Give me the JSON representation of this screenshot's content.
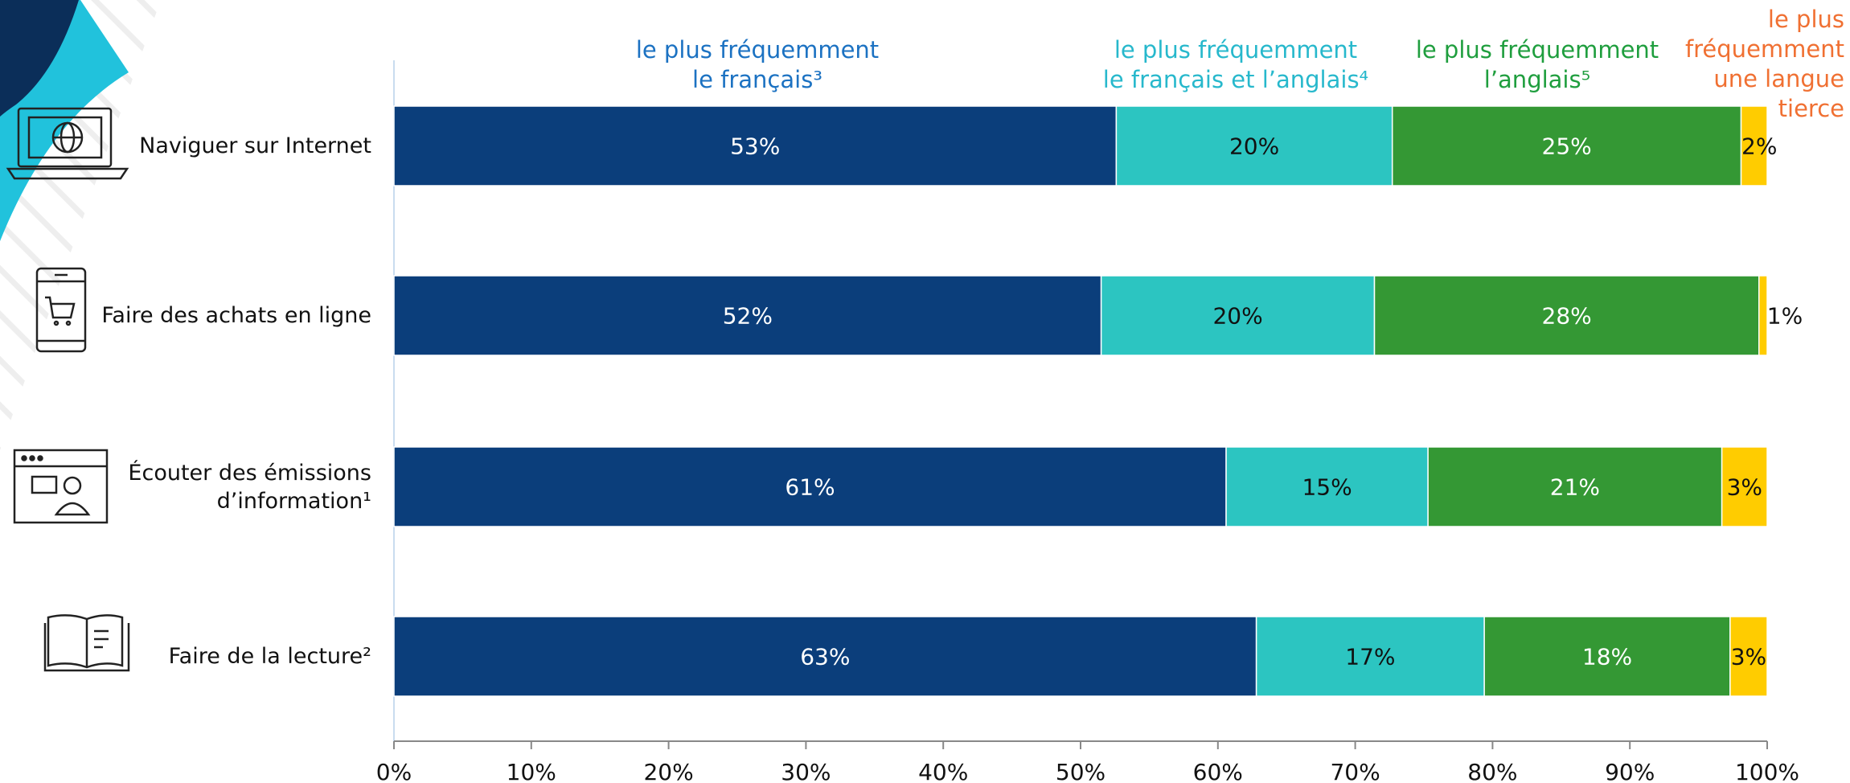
{
  "chart_data": {
    "type": "stacked-barh",
    "categories": [
      "Naviguer sur Internet",
      "Faire des achats en ligne",
      "Écouter des émissions\nd’information¹",
      "Faire de la lecture²"
    ],
    "series": [
      {
        "name": "le plus fréquemment\nle français³",
        "color": "#0b3e7b",
        "label_color": "#1c72c2",
        "text_color": "#ffffff",
        "values": [
          52.6,
          51.5,
          60.6,
          62.8
        ],
        "value_labels": [
          "53%",
          "52%",
          "61%",
          "63%"
        ]
      },
      {
        "name": "le plus fréquemment\nle français et l’anglais⁴",
        "color": "#2cc5c1",
        "label_color": "#27b8cc",
        "text_color": "#111111",
        "values": [
          20.1,
          19.9,
          14.7,
          16.6
        ],
        "value_labels": [
          "20%",
          "20%",
          "15%",
          "17%"
        ]
      },
      {
        "name": "le plus fréquemment\nl’anglais⁵",
        "color": "#349834",
        "label_color": "#1f9e3e",
        "text_color": "#ffffff",
        "values": [
          25.4,
          28.0,
          21.4,
          17.9
        ],
        "value_labels": [
          "25%",
          "28%",
          "21%",
          "18%"
        ]
      },
      {
        "name": "le plus\nfréquemment\nune langue\ntierce",
        "color": "#ffcc00",
        "label_color": "#f07032",
        "text_color": "#111111",
        "values": [
          1.9,
          0.6,
          3.3,
          2.7
        ],
        "value_labels": [
          "2%",
          "1%",
          "3%",
          "3%"
        ]
      }
    ],
    "xlim": [
      0,
      100
    ],
    "xticks": [
      {
        "value": 0,
        "label": "0%"
      },
      {
        "value": 10,
        "label": "10%"
      },
      {
        "value": 20,
        "label": "20%"
      },
      {
        "value": 30,
        "label": "30%"
      },
      {
        "value": 40,
        "label": "40%"
      },
      {
        "value": 50,
        "label": "50%"
      },
      {
        "value": 60,
        "label": "60%"
      },
      {
        "value": 70,
        "label": "70%"
      },
      {
        "value": 80,
        "label": "80%"
      },
      {
        "value": 90,
        "label": "90%"
      },
      {
        "value": 100,
        "label": "100%"
      }
    ]
  }
}
